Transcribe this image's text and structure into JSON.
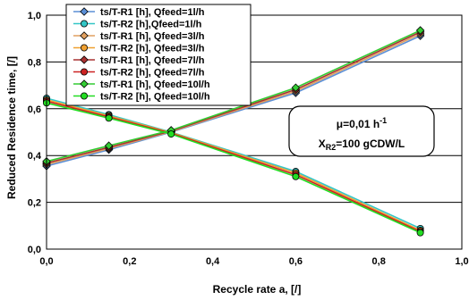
{
  "chart_data": {
    "type": "line",
    "xlabel": "Recycle rate a, [/]",
    "ylabel": "Reduced Residence time, [/]",
    "xlim": [
      0,
      1
    ],
    "ylim": [
      0,
      1
    ],
    "x_ticks": [
      "0,0",
      "0,2",
      "0,4",
      "0,6",
      "0,8",
      "1,0"
    ],
    "y_ticks": [
      "0,0",
      "0,2",
      "0,4",
      "0,6",
      "0,8",
      "1,0"
    ],
    "x": [
      0,
      0.15,
      0.3,
      0.6,
      0.9
    ],
    "grid": "horizontal",
    "legend_position": "top-left",
    "annotation": {
      "line1_main": "μ=0,01 h",
      "line1_sup": "-1",
      "line2_pre": "X",
      "line2_sub": "R2",
      "line2_post": "=100 gCDW/L"
    },
    "series": [
      {
        "name": "ts/T-R1 [h], Qfeed=1l/h",
        "color": "#5b8fd6",
        "marker": "diamond",
        "values": [
          0.355,
          0.425,
          0.5,
          0.668,
          0.912
        ]
      },
      {
        "name": "ts/T-R2 [h],Qfeed=1l/h",
        "color": "#33c6c6",
        "marker": "circle",
        "values": [
          0.645,
          0.575,
          0.5,
          0.332,
          0.088
        ]
      },
      {
        "name": "ts/T-R1 [h], Qfeed=3l/h",
        "color": "#e0a060",
        "marker": "diamond",
        "values": [
          0.362,
          0.43,
          0.502,
          0.675,
          0.92
        ]
      },
      {
        "name": "ts/T-R2 [h], Qfeed=3l/h",
        "color": "#f0a030",
        "marker": "circle",
        "values": [
          0.638,
          0.57,
          0.498,
          0.325,
          0.08
        ]
      },
      {
        "name": "ts/T-R1 [h], Qfeed=7l/h",
        "color": "#a83232",
        "marker": "diamond",
        "values": [
          0.368,
          0.435,
          0.505,
          0.682,
          0.928
        ]
      },
      {
        "name": "ts/T-R2 [h], Qfeed=7l/h",
        "color": "#cc2222",
        "marker": "circle",
        "values": [
          0.632,
          0.565,
          0.495,
          0.318,
          0.075
        ]
      },
      {
        "name": "ts/T-R1 [h], Qfeed=10l/h",
        "color": "#33cc33",
        "marker": "diamond",
        "values": [
          0.375,
          0.442,
          0.508,
          0.69,
          0.935
        ]
      },
      {
        "name": "ts/T-R2 [h], Qfeed=10l/h",
        "color": "#22dd22",
        "marker": "circle",
        "values": [
          0.625,
          0.56,
          0.492,
          0.31,
          0.07
        ]
      }
    ]
  }
}
